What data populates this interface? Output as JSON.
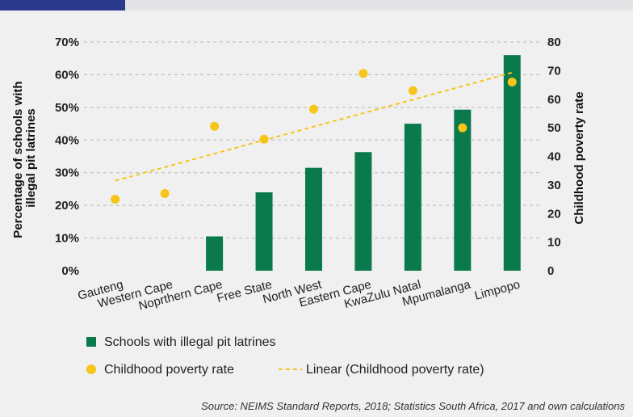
{
  "chart_data": {
    "type": "bar",
    "categories": [
      "Gauteng",
      "Western Cape",
      "Noprthern Cape",
      "Free State",
      "North West",
      "Eastern Cape",
      "KwaZulu Natal",
      "Mpumalanga",
      "Limpopo"
    ],
    "series": [
      {
        "name": "Schools with illegal pit latrines",
        "type": "bar",
        "axis": "left",
        "values": [
          0,
          0,
          10.5,
          24,
          31.5,
          36.3,
          45,
          49.3,
          66
        ]
      },
      {
        "name": "Childhood poverty rate",
        "type": "scatter",
        "axis": "right",
        "values": [
          25,
          27,
          50.5,
          46,
          56.5,
          69,
          63,
          50,
          66
        ]
      },
      {
        "name": "Linear (Childhood poverty rate)",
        "type": "line",
        "style": "dashed",
        "axis": "right",
        "values": [
          31.5,
          36.5,
          41.4,
          46.1,
          50.8,
          55.5,
          60.1,
          64.7,
          69.3
        ]
      }
    ],
    "ylabel_left": "Percentage of schools with illegal pit latrines",
    "ylabel_right": "Childhood poverty rate",
    "yticks_left": [
      "0%",
      "10%",
      "20%",
      "30%",
      "40%",
      "50%",
      "60%",
      "70%"
    ],
    "yticks_right": [
      "0",
      "10",
      "20",
      "30",
      "40",
      "50",
      "60",
      "70",
      "80"
    ],
    "ylim_left": [
      0,
      70
    ],
    "ylim_right": [
      0,
      80
    ],
    "grid": "horizontal dashed",
    "legend_position": "bottom-left",
    "colors": {
      "bar": "#0a7a4c",
      "dot": "#f5c518",
      "trend": "#f5c518",
      "grid": "#b8b8b8"
    }
  },
  "source": "Source: NEIMS Standard Reports, 2018; Statistics South Africa, 2017 and own calculations"
}
